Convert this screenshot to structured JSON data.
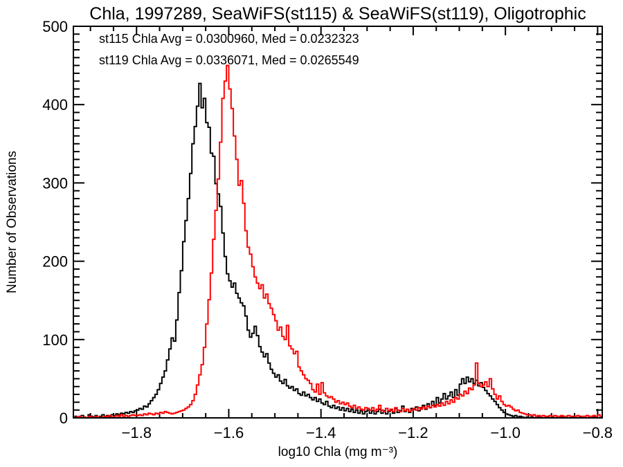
{
  "title": "Chla, 1997289, SeaWiFS(st115) & SeaWiFS(st119), Oligotrophic",
  "annotations": {
    "st115": {
      "text": "st115 Chla Avg = 0.0300960, Med = 0.0232323",
      "color": "#000000"
    },
    "st119": {
      "text": "st119 Chla Avg = 0.0336071, Med = 0.0265549",
      "color": "#ff0000"
    }
  },
  "chart_data": {
    "type": "histogram-step",
    "title": "Chla, 1997289, SeaWiFS(st115) & SeaWiFS(st119), Oligotrophic",
    "xlabel": "log10 Chla (mg m⁻³)",
    "ylabel": "Number of Observations",
    "xlim": [
      -1.937,
      -0.79
    ],
    "ylim": [
      0,
      500
    ],
    "grid": false,
    "x_major_ticks": [
      -1.8,
      -1.6,
      -1.4,
      -1.2,
      -1.0,
      -0.8
    ],
    "x_tick_labels": [
      "−1.8",
      "−1.6",
      "−1.4",
      "−1.2",
      "−1.0",
      "−0.8"
    ],
    "x_minor_interval": 0.05,
    "y_major_ticks": [
      0,
      100,
      200,
      300,
      400,
      500
    ],
    "y_tick_labels": [
      "0",
      "100",
      "200",
      "300",
      "400",
      "500"
    ],
    "y_minor_interval": 10,
    "bin_start": -1.935,
    "bin_width": 0.005,
    "series": [
      {
        "id": "st115",
        "name": "SeaWiFS(st115)",
        "color": "#000000",
        "avg": "0.0300960",
        "med": "0.0232323",
        "values": [
          2,
          1,
          0,
          3,
          1,
          0,
          4,
          2,
          1,
          3,
          0,
          2,
          4,
          1,
          3,
          2,
          4,
          3,
          5,
          4,
          6,
          5,
          7,
          6,
          8,
          7,
          9,
          10,
          12,
          11,
          15,
          14,
          18,
          22,
          26,
          30,
          36,
          44,
          52,
          60,
          74,
          88,
          102,
          98,
          125,
          160,
          188,
          225,
          252,
          280,
          312,
          350,
          372,
          398,
          427,
          396,
          408,
          377,
          371,
          338,
          334,
          299,
          286,
          270,
          236,
          206,
          184,
          175,
          167,
          172,
          159,
          153,
          147,
          143,
          130,
          112,
          103,
          108,
          117,
          105,
          91,
          84,
          78,
          82,
          70,
          62,
          57,
          52,
          55,
          47,
          44,
          49,
          41,
          38,
          40,
          35,
          37,
          31,
          29,
          33,
          28,
          30,
          26,
          23,
          26,
          21,
          24,
          19,
          17,
          21,
          15,
          13,
          16,
          12,
          14,
          10,
          13,
          9,
          12,
          8,
          11,
          7,
          10,
          6,
          9,
          5,
          8,
          10,
          6,
          9,
          5,
          8,
          11,
          6,
          9,
          5,
          8,
          10,
          6,
          12,
          7,
          9,
          15,
          8,
          11,
          7,
          12,
          11,
          14,
          9,
          13,
          16,
          11,
          18,
          13,
          21,
          16,
          26,
          19,
          24,
          31,
          24,
          28,
          33,
          26,
          36,
          29,
          43,
          50,
          44,
          52,
          46,
          50,
          44,
          48,
          41,
          45,
          39,
          35,
          31,
          28,
          24,
          21,
          17,
          13,
          10,
          7,
          5,
          4,
          3,
          2,
          3,
          1,
          2,
          1,
          0,
          1,
          0,
          1,
          0,
          0,
          1,
          0,
          0,
          0,
          1,
          0,
          1,
          0,
          0,
          0,
          1,
          0,
          0,
          0,
          0,
          1,
          0,
          0,
          1,
          0,
          0,
          0,
          0,
          0,
          1,
          0,
          0,
          0
        ]
      },
      {
        "id": "st119",
        "name": "SeaWiFS(st119)",
        "color": "#ff0000",
        "avg": "0.0336071",
        "med": "0.0265549",
        "values": [
          0,
          1,
          2,
          0,
          1,
          0,
          2,
          1,
          0,
          2,
          1,
          0,
          1,
          2,
          1,
          3,
          1,
          2,
          3,
          2,
          4,
          2,
          3,
          2,
          3,
          4,
          3,
          3,
          4,
          3,
          5,
          4,
          6,
          5,
          4,
          6,
          5,
          7,
          6,
          8,
          7,
          6,
          5,
          6,
          7,
          8,
          9,
          10,
          12,
          14,
          17,
          22,
          30,
          42,
          55,
          68,
          90,
          120,
          151,
          185,
          228,
          265,
          305,
          352,
          408,
          430,
          450,
          420,
          395,
          360,
          330,
          297,
          303,
          274,
          239,
          218,
          209,
          193,
          180,
          172,
          165,
          170,
          153,
          158,
          146,
          140,
          132,
          124,
          112,
          116,
          104,
          100,
          118,
          92,
          88,
          82,
          85,
          65,
          60,
          55,
          50,
          48,
          44,
          36,
          33,
          43,
          30,
          45,
          32,
          28,
          26,
          27,
          24,
          20,
          22,
          18,
          20,
          17,
          19,
          15,
          13,
          16,
          12,
          14,
          11,
          10,
          13,
          12,
          10,
          13,
          9,
          11,
          16,
          10,
          8,
          12,
          9,
          11,
          8,
          13,
          10,
          8,
          12,
          9,
          11,
          8,
          10,
          12,
          10,
          13,
          11,
          14,
          12,
          15,
          13,
          16,
          14,
          17,
          15,
          19,
          16,
          21,
          18,
          23,
          20,
          26,
          24,
          30,
          28,
          34,
          31,
          38,
          36,
          42,
          70,
          44,
          40,
          42,
          46,
          40,
          50,
          37,
          30,
          24,
          28,
          21,
          17,
          15,
          16,
          14,
          11,
          9,
          10,
          7,
          6,
          5,
          4,
          4,
          3,
          4,
          2,
          3,
          2,
          3,
          2,
          2,
          3,
          2,
          3,
          2,
          2,
          3,
          2,
          2,
          3,
          2,
          2,
          2,
          3,
          2,
          2,
          2,
          3,
          2,
          2,
          3,
          2,
          4,
          2
        ]
      }
    ]
  }
}
